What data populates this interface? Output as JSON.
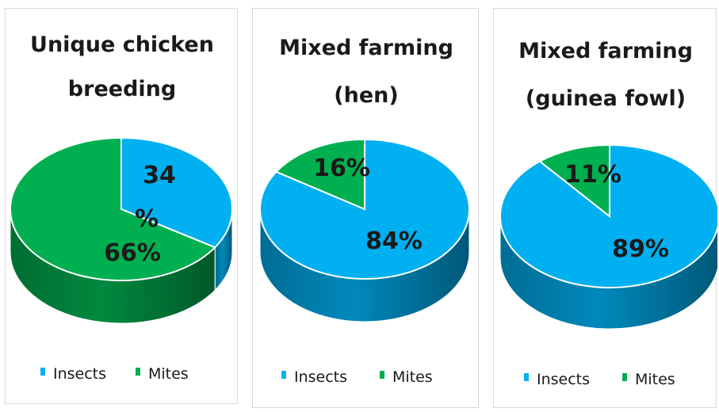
{
  "colors": {
    "insects": "#00B0F0",
    "mites": "#00B050"
  },
  "chart_data": [
    {
      "type": "pie",
      "title_lines": [
        "Unique chicken",
        "breeding"
      ],
      "categories": [
        "Insects",
        "Mites"
      ],
      "values": [
        34,
        66
      ],
      "labels": [
        [
          "34",
          "%"
        ],
        [
          "66%"
        ]
      ],
      "legend": [
        "Insects",
        "Mites"
      ],
      "legend_placement": "bottom"
    },
    {
      "type": "pie",
      "title_lines": [
        "Mixed farming",
        "(hen)"
      ],
      "categories": [
        "Insects",
        "Mites"
      ],
      "values": [
        84,
        16
      ],
      "labels": [
        [
          "84%"
        ],
        [
          "16%"
        ]
      ],
      "legend": [
        "Insects",
        "Mites"
      ],
      "legend_placement": "bottom"
    },
    {
      "type": "pie",
      "title_lines": [
        "Mixed farming",
        "(guinea fowl)"
      ],
      "categories": [
        "Insects",
        "Mites"
      ],
      "values": [
        89,
        11
      ],
      "labels": [
        [
          "89%"
        ],
        [
          "11%"
        ]
      ],
      "legend": [
        "Insects",
        "Mites"
      ],
      "legend_placement": "bottom"
    }
  ]
}
